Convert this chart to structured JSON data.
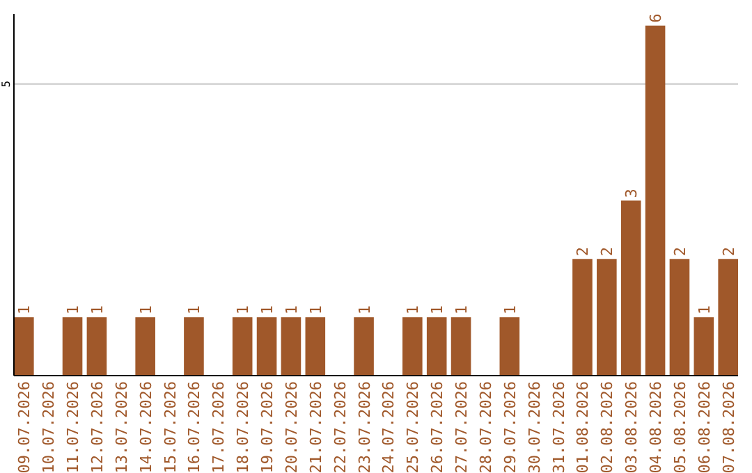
{
  "chart_data": {
    "type": "bar",
    "categories": [
      "09.07.2026",
      "10.07.2026",
      "11.07.2026",
      "12.07.2026",
      "13.07.2026",
      "14.07.2026",
      "15.07.2026",
      "16.07.2026",
      "17.07.2026",
      "18.07.2026",
      "19.07.2026",
      "20.07.2026",
      "21.07.2026",
      "22.07.2026",
      "23.07.2026",
      "24.07.2026",
      "25.07.2026",
      "26.07.2026",
      "27.07.2026",
      "28.07.2026",
      "29.07.2026",
      "30.07.2026",
      "31.07.2026",
      "01.08.2026",
      "02.08.2026",
      "03.08.2026",
      "04.08.2026",
      "05.08.2026",
      "06.08.2026",
      "07.08.2026"
    ],
    "values": [
      1,
      null,
      1,
      1,
      null,
      1,
      null,
      1,
      null,
      1,
      1,
      1,
      1,
      null,
      1,
      null,
      1,
      1,
      1,
      null,
      1,
      null,
      null,
      2,
      2,
      3,
      6,
      2,
      1,
      2
    ],
    "color": "#a0582a",
    "ylim": [
      0,
      6.2
    ],
    "yticks": [
      5
    ],
    "grid": "y",
    "data_labels": true
  }
}
